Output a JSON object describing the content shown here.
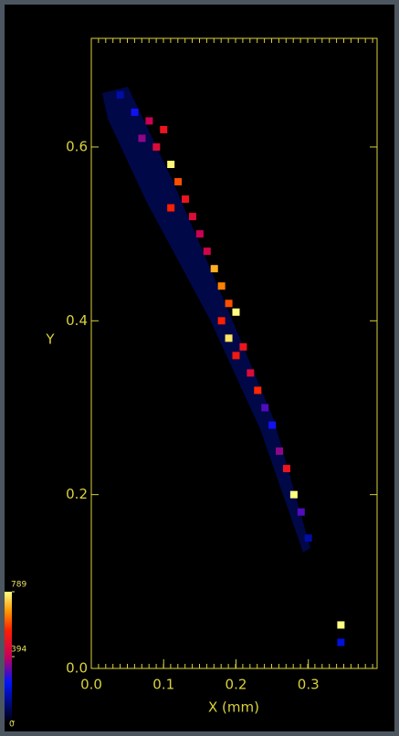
{
  "chart_data": {
    "type": "heatmap",
    "xlabel": "X (mm)",
    "ylabel": "Y",
    "xlim": [
      0,
      0.395
    ],
    "ylim": [
      0,
      0.725
    ],
    "xticks": [
      {
        "value": 0,
        "label": "0.0"
      },
      0.1,
      0.2,
      0.3
    ],
    "yticks": [
      {
        "value": 0,
        "label": "0.0"
      },
      0.2,
      0.4,
      0.6
    ],
    "clim": [
      0,
      789
    ],
    "cticks": [
      0,
      394,
      789
    ],
    "x": [
      0.04,
      0.06,
      0.08,
      0.1,
      0.09,
      0.07,
      0.11,
      0.12,
      0.13,
      0.11,
      0.14,
      0.15,
      0.16,
      0.17,
      0.18,
      0.19,
      0.2,
      0.18,
      0.19,
      0.21,
      0.2,
      0.22,
      0.23,
      0.24,
      0.25,
      0.26,
      0.27,
      0.28,
      0.29,
      0.3,
      0.345,
      0.345
    ],
    "y": [
      0.66,
      0.64,
      0.63,
      0.62,
      0.6,
      0.61,
      0.58,
      0.56,
      0.54,
      0.53,
      0.52,
      0.5,
      0.48,
      0.46,
      0.44,
      0.42,
      0.41,
      0.4,
      0.38,
      0.37,
      0.36,
      0.34,
      0.32,
      0.3,
      0.28,
      0.25,
      0.23,
      0.2,
      0.18,
      0.15,
      0.05,
      0.03
    ],
    "values": [
      150,
      250,
      400,
      500,
      450,
      350,
      780,
      600,
      500,
      550,
      450,
      400,
      420,
      700,
      650,
      600,
      789,
      550,
      760,
      500,
      520,
      450,
      560,
      300,
      250,
      350,
      500,
      789,
      300,
      150,
      789,
      200
    ]
  }
}
